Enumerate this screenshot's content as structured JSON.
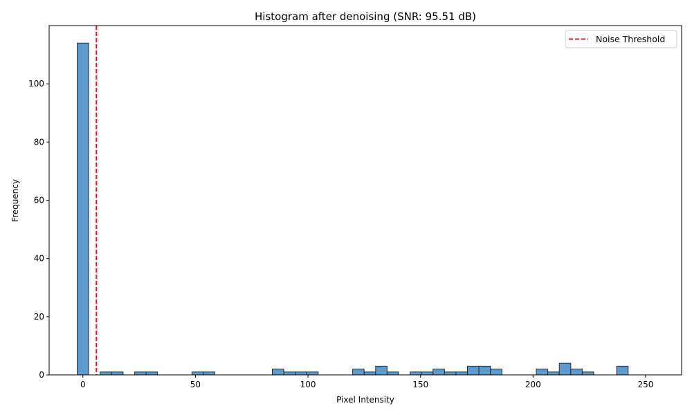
{
  "chart_data": {
    "type": "bar",
    "title": "Histogram after denoising (SNR: 95.51 dB)",
    "xlabel": "Pixel Intensity",
    "ylabel": "Frequency",
    "xlim": [
      -15,
      266
    ],
    "ylim": [
      0,
      120
    ],
    "xticks": [
      0,
      50,
      100,
      150,
      200,
      250
    ],
    "yticks": [
      0,
      20,
      40,
      60,
      80,
      100
    ],
    "grid": false,
    "bar_color": "#5b9bd0",
    "bar_edge_color": "#2a2a2a",
    "bin_width": 5.1,
    "bins": [
      {
        "x": -2.55,
        "value": 114
      },
      {
        "x": 7.65,
        "value": 1
      },
      {
        "x": 12.75,
        "value": 1
      },
      {
        "x": 22.95,
        "value": 1
      },
      {
        "x": 28.05,
        "value": 1
      },
      {
        "x": 48.45,
        "value": 1
      },
      {
        "x": 53.55,
        "value": 1
      },
      {
        "x": 84.15,
        "value": 2
      },
      {
        "x": 89.25,
        "value": 1
      },
      {
        "x": 94.35,
        "value": 1
      },
      {
        "x": 99.45,
        "value": 1
      },
      {
        "x": 119.85,
        "value": 2
      },
      {
        "x": 124.95,
        "value": 1
      },
      {
        "x": 130.05,
        "value": 3
      },
      {
        "x": 135.15,
        "value": 1
      },
      {
        "x": 145.35,
        "value": 1
      },
      {
        "x": 150.45,
        "value": 1
      },
      {
        "x": 155.55,
        "value": 2
      },
      {
        "x": 160.65,
        "value": 1
      },
      {
        "x": 165.75,
        "value": 1
      },
      {
        "x": 170.85,
        "value": 3
      },
      {
        "x": 175.95,
        "value": 3
      },
      {
        "x": 181.05,
        "value": 2
      },
      {
        "x": 201.45,
        "value": 2
      },
      {
        "x": 206.55,
        "value": 1
      },
      {
        "x": 211.65,
        "value": 4
      },
      {
        "x": 216.75,
        "value": 2
      },
      {
        "x": 221.85,
        "value": 1
      },
      {
        "x": 237.15,
        "value": 3
      }
    ],
    "threshold": {
      "x": 6,
      "label": "Noise Threshold",
      "color": "#e8141c",
      "style": "dashed"
    },
    "legend_placement": "top-right"
  }
}
